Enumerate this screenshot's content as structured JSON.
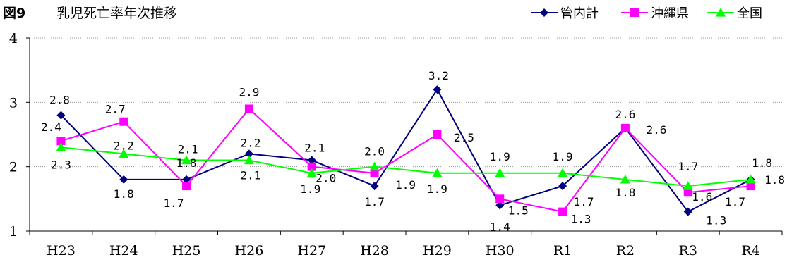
{
  "chart_data": {
    "type": "line",
    "title_label": "図9",
    "title": "乳児死亡率年次推移",
    "categories": [
      "H23",
      "H24",
      "H25",
      "H26",
      "H27",
      "H28",
      "H29",
      "H30",
      "R1",
      "R2",
      "R3",
      "R4"
    ],
    "ylim": [
      1,
      4
    ],
    "yticks": [
      1,
      2,
      3,
      4
    ],
    "grid": true,
    "legend_position": "top-right",
    "series": [
      {
        "name": "管内計",
        "color": "#000080",
        "marker": "diamond",
        "values": [
          2.8,
          1.8,
          1.8,
          2.2,
          2.1,
          1.7,
          3.2,
          1.4,
          1.7,
          2.6,
          1.3,
          1.8
        ],
        "labels": [
          "2.8",
          "1.8",
          "1.8",
          "2.2",
          "2.1",
          "1.7",
          "3.2",
          "1.4",
          "1.7",
          "2.6",
          "1.3",
          "1.8"
        ]
      },
      {
        "name": "沖縄県",
        "color": "#ff00ff",
        "marker": "square",
        "values": [
          2.4,
          2.7,
          1.7,
          2.9,
          2.0,
          1.9,
          2.5,
          1.5,
          1.3,
          2.6,
          1.6,
          1.7
        ],
        "labels": [
          "2.4",
          "2.7",
          "1.7",
          "2.9",
          "2.0",
          "1.9",
          "2.5",
          "1.5",
          "1.3",
          "2.6",
          "1.6",
          "1.7"
        ]
      },
      {
        "name": "全国",
        "color": "#00ff00",
        "marker": "triangle",
        "values": [
          2.3,
          2.2,
          2.1,
          2.1,
          1.9,
          2.0,
          1.9,
          1.9,
          1.9,
          1.8,
          1.7,
          1.8
        ],
        "labels": [
          "2.3",
          "2.2",
          "2.1",
          "2.1",
          "1.9",
          "2.0",
          "1.9",
          "1.9",
          "1.9",
          "1.8",
          "1.7",
          "1.8"
        ]
      }
    ]
  }
}
